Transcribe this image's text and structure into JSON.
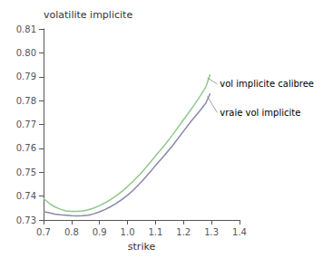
{
  "chart_data": {
    "type": "line",
    "xlabel": "strike",
    "ylabel": "volatilite implicite",
    "x": [
      0.7,
      0.72,
      0.74,
      0.76,
      0.78,
      0.8,
      0.82,
      0.84,
      0.86,
      0.88,
      0.9,
      0.92,
      0.94,
      0.96,
      0.98,
      1.0,
      1.02,
      1.05,
      1.08,
      1.1,
      1.13,
      1.16,
      1.2,
      1.23,
      1.26,
      1.28,
      1.295
    ],
    "series": [
      {
        "color": "#90c890",
        "values": [
          0.739,
          0.737,
          0.7355,
          0.7345,
          0.7338,
          0.7336,
          0.7336,
          0.7338,
          0.7343,
          0.735,
          0.736,
          0.7372,
          0.7386,
          0.7402,
          0.742,
          0.744,
          0.7462,
          0.7498,
          0.754,
          0.7568,
          0.761,
          0.7655,
          0.772,
          0.7768,
          0.782,
          0.7858,
          0.791
        ]
      },
      {
        "color": "#8888aa",
        "values": [
          0.7335,
          0.733,
          0.7325,
          0.7322,
          0.732,
          0.7318,
          0.7317,
          0.7318,
          0.732,
          0.7326,
          0.7334,
          0.7344,
          0.7356,
          0.737,
          0.7386,
          0.7404,
          0.7424,
          0.746,
          0.75,
          0.7528,
          0.7568,
          0.761,
          0.7672,
          0.7718,
          0.776,
          0.779,
          0.783
        ]
      }
    ],
    "annotations": [
      {
        "text": "vol implicite calibree",
        "x": 1.32,
        "y": 0.787,
        "xy": [
          1.285,
          0.7895
        ]
      },
      {
        "text": "vraie vol implicite",
        "x": 1.32,
        "y": 0.775,
        "xy": [
          1.285,
          0.7818
        ]
      }
    ],
    "xlim": [
      0.7,
      1.4
    ],
    "ylim": [
      0.73,
      0.81
    ],
    "xticks": [
      0.7,
      0.8,
      0.9,
      {
        "value": 1.0,
        "label": "1.0"
      },
      1.1,
      1.2,
      1.3,
      1.4
    ],
    "yticks": [
      0.73,
      0.74,
      0.75,
      0.76,
      0.77,
      0.78,
      0.79,
      {
        "value": 0.8,
        "label": "0.80"
      },
      0.81
    ],
    "grid": false
  }
}
